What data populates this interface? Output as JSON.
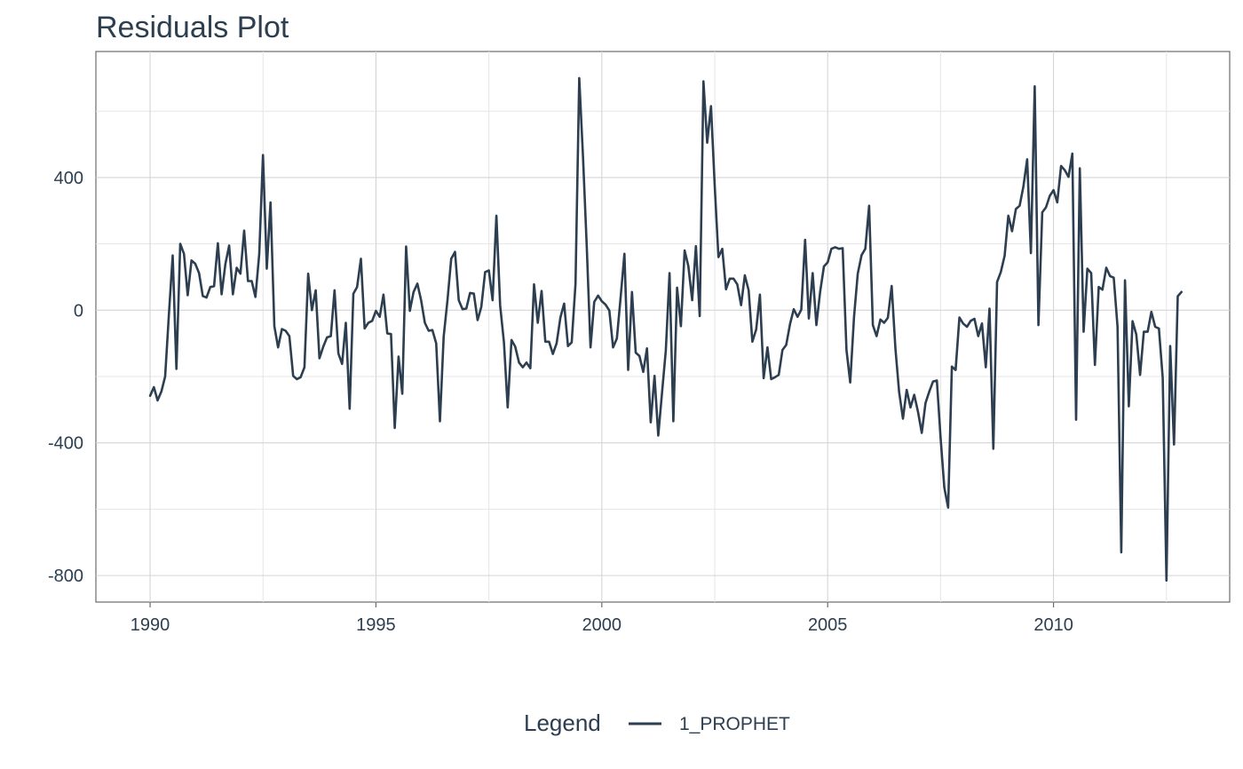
{
  "chart_data": {
    "type": "line",
    "title": "Residuals Plot",
    "xlabel": "",
    "ylabel": "",
    "xlim": [
      1988.8,
      2013.9
    ],
    "ylim": [
      -880,
      780
    ],
    "x_ticks": [
      1990,
      1995,
      2000,
      2005,
      2010
    ],
    "x_tick_labels": [
      "1990",
      "1995",
      "2000",
      "2005",
      "2010"
    ],
    "y_ticks": [
      -800,
      -400,
      0,
      400
    ],
    "y_tick_labels": [
      "-800",
      "-400",
      "0",
      "400"
    ],
    "y_minor_ticks": [
      -600,
      -200,
      200,
      600
    ],
    "grid": true,
    "legend": {
      "title": "Legend",
      "position": "bottom"
    },
    "series": [
      {
        "name": "1_PROPHET",
        "color": "#2c3e50",
        "x": [
          1990.0,
          1990.083,
          1990.167,
          1990.25,
          1990.333,
          1990.417,
          1990.5,
          1990.583,
          1990.667,
          1990.75,
          1990.833,
          1990.917,
          1991.0,
          1991.083,
          1991.167,
          1991.25,
          1991.333,
          1991.417,
          1991.5,
          1991.583,
          1991.667,
          1991.75,
          1991.833,
          1991.917,
          1992.0,
          1992.083,
          1992.167,
          1992.25,
          1992.333,
          1992.417,
          1992.5,
          1992.583,
          1992.667,
          1992.75,
          1992.833,
          1992.917,
          1993.0,
          1993.083,
          1993.167,
          1993.25,
          1993.333,
          1993.417,
          1993.5,
          1993.583,
          1993.667,
          1993.75,
          1993.833,
          1993.917,
          1994.0,
          1994.083,
          1994.167,
          1994.25,
          1994.333,
          1994.417,
          1994.5,
          1994.583,
          1994.667,
          1994.75,
          1994.833,
          1994.917,
          1995.0,
          1995.083,
          1995.167,
          1995.25,
          1995.333,
          1995.417,
          1995.5,
          1995.583,
          1995.667,
          1995.75,
          1995.833,
          1995.917,
          1996.0,
          1996.083,
          1996.167,
          1996.25,
          1996.333,
          1996.417,
          1996.5,
          1996.583,
          1996.667,
          1996.75,
          1996.833,
          1996.917,
          1997.0,
          1997.083,
          1997.167,
          1997.25,
          1997.333,
          1997.417,
          1997.5,
          1997.583,
          1997.667,
          1997.75,
          1997.833,
          1997.917,
          1998.0,
          1998.083,
          1998.167,
          1998.25,
          1998.333,
          1998.417,
          1998.5,
          1998.583,
          1998.667,
          1998.75,
          1998.833,
          1998.917,
          1999.0,
          1999.083,
          1999.167,
          1999.25,
          1999.333,
          1999.417,
          1999.5,
          1999.583,
          1999.667,
          1999.75,
          1999.833,
          1999.917,
          2000.0,
          2000.083,
          2000.167,
          2000.25,
          2000.333,
          2000.417,
          2000.5,
          2000.583,
          2000.667,
          2000.75,
          2000.833,
          2000.917,
          2001.0,
          2001.083,
          2001.167,
          2001.25,
          2001.333,
          2001.417,
          2001.5,
          2001.583,
          2001.667,
          2001.75,
          2001.833,
          2001.917,
          2002.0,
          2002.083,
          2002.167,
          2002.25,
          2002.333,
          2002.417,
          2002.5,
          2002.583,
          2002.667,
          2002.75,
          2002.833,
          2002.917,
          2003.0,
          2003.083,
          2003.167,
          2003.25,
          2003.333,
          2003.417,
          2003.5,
          2003.583,
          2003.667,
          2003.75,
          2003.833,
          2003.917,
          2004.0,
          2004.083,
          2004.167,
          2004.25,
          2004.333,
          2004.417,
          2004.5,
          2004.583,
          2004.667,
          2004.75,
          2004.833,
          2004.917,
          2005.0,
          2005.083,
          2005.167,
          2005.25,
          2005.333,
          2005.417,
          2005.5,
          2005.583,
          2005.667,
          2005.75,
          2005.833,
          2005.917,
          2006.0,
          2006.083,
          2006.167,
          2006.25,
          2006.333,
          2006.417,
          2006.5,
          2006.583,
          2006.667,
          2006.75,
          2006.833,
          2006.917,
          2007.0,
          2007.083,
          2007.167,
          2007.25,
          2007.333,
          2007.417,
          2007.5,
          2007.583,
          2007.667,
          2007.75,
          2007.833,
          2007.917,
          2008.0,
          2008.083,
          2008.167,
          2008.25,
          2008.333,
          2008.417,
          2008.5,
          2008.583,
          2008.667,
          2008.75,
          2008.833,
          2008.917,
          2009.0,
          2009.083,
          2009.167,
          2009.25,
          2009.333,
          2009.417,
          2009.5,
          2009.583,
          2009.667,
          2009.75,
          2009.833,
          2009.917,
          2010.0,
          2010.083,
          2010.167,
          2010.25,
          2010.333,
          2010.417,
          2010.5,
          2010.583,
          2010.667,
          2010.75,
          2010.833,
          2010.917,
          2011.0,
          2011.083,
          2011.167,
          2011.25,
          2011.333,
          2011.417,
          2011.5,
          2011.583,
          2011.667,
          2011.75,
          2011.833,
          2011.917,
          2012.0,
          2012.083,
          2012.167,
          2012.25,
          2012.333,
          2012.417,
          2012.5,
          2012.583,
          2012.667,
          2012.75,
          2012.833
        ],
        "values": [
          -258,
          -232,
          -272,
          -245,
          -200,
          -10,
          165,
          -177,
          200,
          170,
          45,
          150,
          140,
          112,
          43,
          38,
          70,
          72,
          202,
          48,
          140,
          195,
          48,
          128,
          110,
          240,
          88,
          88,
          40,
          170,
          468,
          125,
          325,
          -48,
          -112,
          -57,
          -62,
          -78,
          -198,
          -208,
          -202,
          -172,
          110,
          0,
          60,
          -145,
          -110,
          -82,
          -78,
          60,
          -130,
          -162,
          -38,
          -297,
          50,
          70,
          155,
          -55,
          -38,
          -32,
          -2,
          -20,
          47,
          -70,
          -72,
          -355,
          -140,
          -252,
          192,
          -2,
          55,
          80,
          30,
          -38,
          -62,
          -60,
          -100,
          -335,
          -80,
          30,
          155,
          176,
          30,
          3,
          5,
          52,
          50,
          -30,
          10,
          115,
          120,
          30,
          285,
          15,
          -97,
          -293,
          -90,
          -110,
          -158,
          -172,
          -158,
          -175,
          78,
          -38,
          58,
          -95,
          -95,
          -132,
          -100,
          -22,
          20,
          -108,
          -97,
          80,
          700,
          465,
          190,
          -112,
          25,
          44,
          27,
          17,
          -1,
          -112,
          -85,
          38,
          170,
          -180,
          55,
          -128,
          -138,
          -186,
          -115,
          -338,
          -198,
          -378,
          -250,
          -122,
          112,
          -335,
          68,
          -48,
          180,
          133,
          30,
          193,
          -18,
          690,
          505,
          615,
          375,
          160,
          185,
          63,
          95,
          95,
          78,
          15,
          105,
          60,
          -95,
          -58,
          47,
          -205,
          -112,
          -208,
          -202,
          -195,
          -120,
          -105,
          -42,
          3,
          -20,
          2,
          212,
          -25,
          112,
          -45,
          55,
          132,
          144,
          185,
          190,
          185,
          187,
          -120,
          -218,
          -20,
          110,
          166,
          185,
          315,
          -45,
          -78,
          -28,
          -38,
          -23,
          73,
          -115,
          -247,
          -327,
          -240,
          -293,
          -255,
          -307,
          -370,
          -280,
          -245,
          -215,
          -212,
          -385,
          -535,
          -595,
          -170,
          -180,
          -22,
          -40,
          -50,
          -32,
          -26,
          -78,
          -40,
          -172,
          5,
          -418,
          85,
          115,
          164,
          285,
          238,
          305,
          315,
          372,
          455,
          172,
          675,
          -45,
          295,
          310,
          345,
          362,
          325,
          435,
          422,
          402,
          472,
          -330,
          428,
          -65,
          125,
          112,
          -165,
          70,
          62,
          128,
          103,
          98,
          -50,
          -730,
          90,
          -290,
          -33,
          -73,
          -195,
          -65,
          -65,
          -5,
          -50,
          -55,
          -205,
          -815,
          -108,
          -405,
          42,
          55
        ]
      }
    ]
  }
}
